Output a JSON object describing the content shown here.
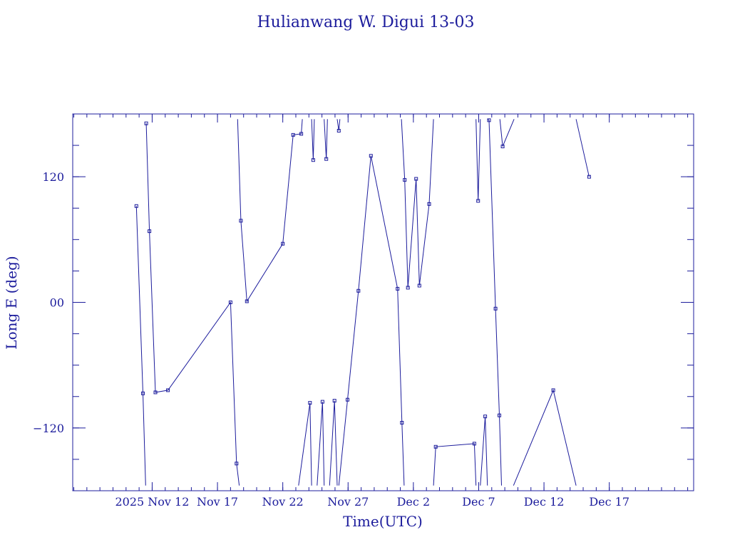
{
  "chart_data": {
    "type": "line",
    "title": "Hulianwang W. Digui 13-03",
    "xlabel": "Time(UTC)",
    "ylabel": "Long E (deg)",
    "x_unit": "day",
    "xlim": [
      "2025-11-05T22:00",
      "2025-12-23T11:00"
    ],
    "ylim": [
      -180,
      180
    ],
    "y_wraps": true,
    "x_ticks": [
      {
        "label": "2025 Nov 12",
        "x": "2025-11-12"
      },
      {
        "label": "Nov 17",
        "x": "2025-11-17"
      },
      {
        "label": "Nov 22",
        "x": "2025-11-22"
      },
      {
        "label": "Nov 27",
        "x": "2025-11-27"
      },
      {
        "label": "Dec  2",
        "x": "2025-12-02"
      },
      {
        "label": "Dec  7",
        "x": "2025-12-07"
      },
      {
        "label": "Dec 12",
        "x": "2025-12-12"
      },
      {
        "label": "Dec 17",
        "x": "2025-12-17"
      }
    ],
    "y_ticks": [
      {
        "label": "120",
        "y": 120
      },
      {
        "label": "00",
        "y": 0
      },
      {
        "label": "−120",
        "y": -120
      }
    ],
    "y_minor_step": 30,
    "x_minor_step_days": 1,
    "color": "#1c1c9c",
    "series": [
      {
        "points": [
          {
            "x": "2025-11-10T19:00",
            "y": 92
          },
          {
            "x": "2025-11-11T07:00",
            "y": -87
          },
          {
            "x": "2025-11-11T12:00",
            "y": -175
          }
        ]
      },
      {
        "points": [
          {
            "x": "2025-11-11T13:00",
            "y": 171
          },
          {
            "x": "2025-11-11T19:00",
            "y": 68
          },
          {
            "x": "2025-11-12T06:00",
            "y": -86
          },
          {
            "x": "2025-11-13T05:00",
            "y": -84
          },
          {
            "x": "2025-11-18T00:00",
            "y": 0
          },
          {
            "x": "2025-11-18T11:00",
            "y": -154
          },
          {
            "x": "2025-11-18T16:00",
            "y": -175
          }
        ]
      },
      {
        "points": [
          {
            "x": "2025-11-18T13:00",
            "y": 175
          },
          {
            "x": "2025-11-18T19:00",
            "y": 78
          },
          {
            "x": "2025-11-19T06:00",
            "y": 1
          },
          {
            "x": "2025-11-22T00:00",
            "y": 56
          },
          {
            "x": "2025-11-22T19:00",
            "y": 160
          },
          {
            "x": "2025-11-23T10:00",
            "y": 161
          },
          {
            "x": "2025-11-23T12:00",
            "y": 175
          }
        ]
      },
      {
        "points": [
          {
            "x": "2025-11-23T05:00",
            "y": -175
          },
          {
            "x": "2025-11-24T02:00",
            "y": -96
          },
          {
            "x": "2025-11-24T05:00",
            "y": -175
          }
        ]
      },
      {
        "points": [
          {
            "x": "2025-11-24T05:00",
            "y": 175
          },
          {
            "x": "2025-11-24T08:00",
            "y": 136
          },
          {
            "x": "2025-11-24T10:00",
            "y": 175
          }
        ]
      },
      {
        "points": [
          {
            "x": "2025-11-24T15:00",
            "y": -175
          },
          {
            "x": "2025-11-25T01:00",
            "y": -95
          },
          {
            "x": "2025-11-25T04:00",
            "y": -175
          }
        ]
      },
      {
        "points": [
          {
            "x": "2025-11-25T04:00",
            "y": 175
          },
          {
            "x": "2025-11-25T08:00",
            "y": 137
          },
          {
            "x": "2025-11-25T10:00",
            "y": 175
          }
        ]
      },
      {
        "points": [
          {
            "x": "2025-11-25T14:00",
            "y": -175
          },
          {
            "x": "2025-11-25T23:00",
            "y": -94
          },
          {
            "x": "2025-11-26T04:00",
            "y": -175
          }
        ]
      },
      {
        "points": [
          {
            "x": "2025-11-26T04:00",
            "y": 175
          },
          {
            "x": "2025-11-26T07:00",
            "y": 164
          },
          {
            "x": "2025-11-26T09:00",
            "y": 175
          }
        ]
      },
      {
        "points": [
          {
            "x": "2025-11-26T07:00",
            "y": -175
          },
          {
            "x": "2025-11-26T23:00",
            "y": -93
          },
          {
            "x": "2025-11-27T19:00",
            "y": 11
          },
          {
            "x": "2025-11-28T18:00",
            "y": 140
          },
          {
            "x": "2025-11-30T19:00",
            "y": 13
          },
          {
            "x": "2025-12-01T03:00",
            "y": -115
          },
          {
            "x": "2025-12-01T07:00",
            "y": -175
          }
        ]
      },
      {
        "points": [
          {
            "x": "2025-12-01T02:00",
            "y": 175
          },
          {
            "x": "2025-12-01T08:00",
            "y": 117
          },
          {
            "x": "2025-12-01T14:00",
            "y": 14
          },
          {
            "x": "2025-12-02T05:00",
            "y": 118
          },
          {
            "x": "2025-12-02T11:00",
            "y": 16
          },
          {
            "x": "2025-12-03T05:00",
            "y": 94
          },
          {
            "x": "2025-12-03T13:00",
            "y": 175
          }
        ]
      },
      {
        "points": [
          {
            "x": "2025-12-03T13:00",
            "y": -175
          },
          {
            "x": "2025-12-03T17:00",
            "y": -138
          },
          {
            "x": "2025-12-06T16:00",
            "y": -135
          },
          {
            "x": "2025-12-06T19:00",
            "y": -175
          }
        ]
      },
      {
        "points": [
          {
            "x": "2025-12-06T19:00",
            "y": 175
          },
          {
            "x": "2025-12-06T23:00",
            "y": 97
          },
          {
            "x": "2025-12-07T03:00",
            "y": 175
          }
        ]
      },
      {
        "points": [
          {
            "x": "2025-12-07T03:00",
            "y": -175
          },
          {
            "x": "2025-12-07T12:00",
            "y": -109
          },
          {
            "x": "2025-12-07T16:00",
            "y": -175
          }
        ]
      },
      {
        "points": [
          {
            "x": "2025-12-07T16:00",
            "y": 175
          },
          {
            "x": "2025-12-07T19:00",
            "y": 174
          },
          {
            "x": "2025-12-08T07:00",
            "y": -6
          },
          {
            "x": "2025-12-08T14:00",
            "y": -108
          },
          {
            "x": "2025-12-08T18:00",
            "y": -175
          }
        ]
      },
      {
        "points": [
          {
            "x": "2025-12-08T15:00",
            "y": 175
          },
          {
            "x": "2025-12-08T20:00",
            "y": 149
          },
          {
            "x": "2025-12-09T17:00",
            "y": 175
          }
        ]
      },
      {
        "points": [
          {
            "x": "2025-12-09T16:00",
            "y": -175
          },
          {
            "x": "2025-12-12T17:00",
            "y": -84
          },
          {
            "x": "2025-12-14T11:00",
            "y": -175
          }
        ]
      },
      {
        "points": [
          {
            "x": "2025-12-14T11:00",
            "y": 175
          },
          {
            "x": "2025-12-15T11:00",
            "y": 120
          }
        ]
      }
    ]
  }
}
